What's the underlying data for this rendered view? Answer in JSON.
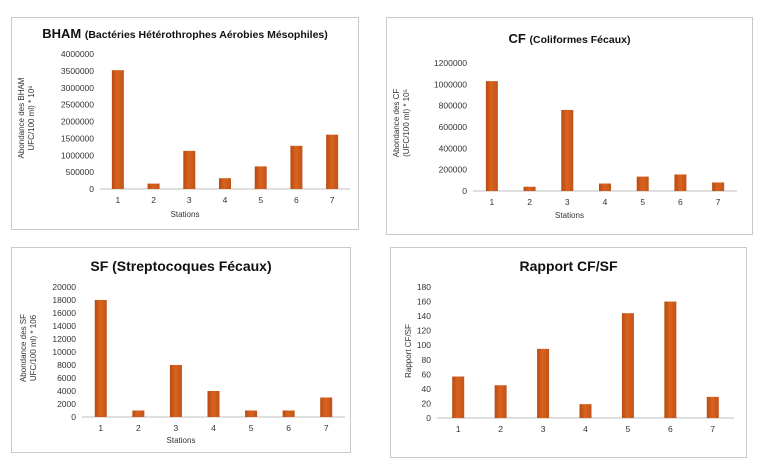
{
  "chart_data": [
    {
      "type": "bar",
      "title": "BHAM",
      "subtitle": "(Bactéries Hétérothrophes Aérobies Mésophiles)",
      "xlabel": "Stations",
      "ylabel": [
        "Abondance des BHAM",
        "UFC/100 ml) * 10⁶"
      ],
      "categories": [
        "1",
        "2",
        "3",
        "4",
        "5",
        "6",
        "7"
      ],
      "values": [
        3520000,
        160000,
        1130000,
        320000,
        670000,
        1280000,
        1610000
      ],
      "ylim": [
        0,
        4000000
      ],
      "yticks": [
        "0",
        "500000",
        "1000000",
        "1500000",
        "2000000",
        "2500000",
        "3000000",
        "3500000",
        "4000000"
      ],
      "grid": false,
      "legend": "none",
      "bar_color": "#d9631e"
    },
    {
      "type": "bar",
      "title": "CF",
      "subtitle": "(Coliformes Fécaux)",
      "xlabel": "Stations",
      "ylabel": [
        "Abondance des CF",
        "(UFC/100 ml) * 10⁵"
      ],
      "categories": [
        "1",
        "2",
        "3",
        "4",
        "5",
        "6",
        "7"
      ],
      "values": [
        1030000,
        40000,
        760000,
        70000,
        135000,
        155000,
        80000
      ],
      "ylim": [
        0,
        1200000
      ],
      "yticks": [
        "0",
        "200000",
        "400000",
        "600000",
        "800000",
        "1000000",
        "1200000"
      ],
      "grid": false,
      "legend": "none",
      "bar_color": "#d9631e"
    },
    {
      "type": "bar",
      "title": "SF",
      "subtitle": "(Streptocoques Fécaux)",
      "xlabel": "Stations",
      "ylabel": [
        "Abondance des SF",
        "UFC/100 ml) * 106"
      ],
      "categories": [
        "1",
        "2",
        "3",
        "4",
        "5",
        "6",
        "7"
      ],
      "values": [
        18000,
        1000,
        8000,
        4000,
        1000,
        1000,
        3000
      ],
      "ylim": [
        0,
        20000
      ],
      "yticks": [
        "0",
        "2000",
        "4000",
        "6000",
        "8000",
        "10000",
        "12000",
        "14000",
        "16000",
        "18000",
        "20000"
      ],
      "grid": false,
      "legend": "none",
      "bar_color": "#d9631e"
    },
    {
      "type": "bar",
      "title": "Rapport CF/SF",
      "subtitle": "",
      "xlabel": "",
      "ylabel": [
        "Rapport CF/SF"
      ],
      "categories": [
        "1",
        "2",
        "3",
        "4",
        "5",
        "6",
        "7"
      ],
      "values": [
        57,
        45,
        95,
        19,
        144,
        160,
        29
      ],
      "ylim": [
        0,
        180
      ],
      "yticks": [
        "0",
        "20",
        "40",
        "60",
        "80",
        "100",
        "120",
        "140",
        "160",
        "180"
      ],
      "grid": false,
      "legend": "none",
      "bar_color": "#d9631e"
    }
  ]
}
